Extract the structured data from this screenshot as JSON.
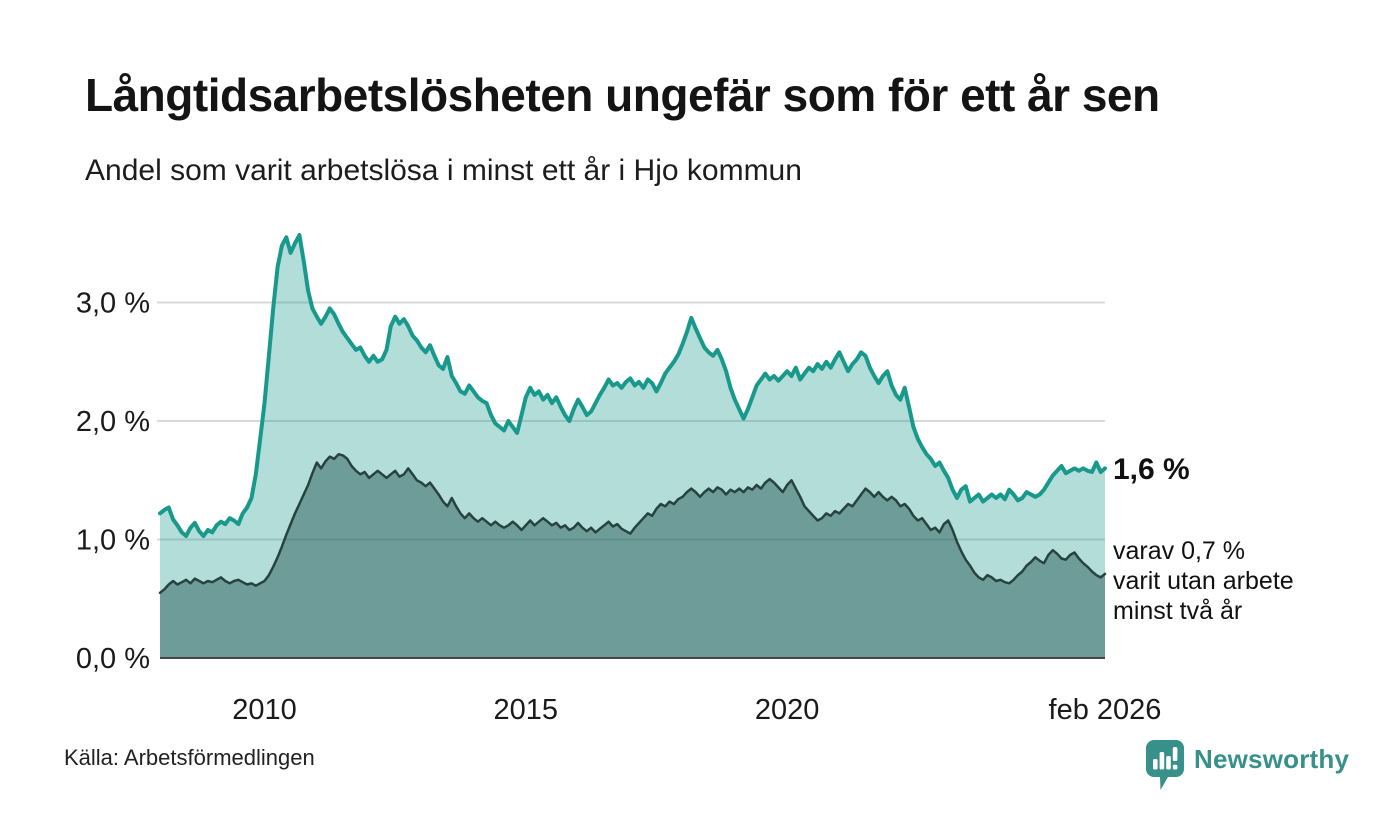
{
  "header": {
    "title": "Långtidsarbetslösheten ungefär som för ett år sen",
    "subtitle": "Andel som varit arbetslösa i minst ett år i Hjo kommun"
  },
  "annotations": {
    "latest_value": "1,6 %",
    "secondary_line1": "varav 0,7 %",
    "secondary_line2": "varit utan arbete",
    "secondary_line3": "minst två år"
  },
  "footer": {
    "source": "Källa: Arbetsförmedlingen",
    "brand": "Newsworthy"
  },
  "colors": {
    "accent_teal": "#18998b",
    "light_fill": "rgba(24,153,139,0.33)",
    "dark_line": "#27433f",
    "dark_fill": "rgba(31,82,78,0.47)",
    "gridline": "#d9d9d9",
    "baseline": "#454545",
    "text": "#1a1a1a",
    "brand_teal": "#38908a"
  },
  "chart_data": {
    "type": "area",
    "title": "Långtidsarbetslösheten ungefär som för ett år sen",
    "subtitle": "Andel som varit arbetslösa i minst ett år i Hjo kommun",
    "unit": "%",
    "grid": "horizontal",
    "legend_position": "none",
    "xlim": [
      2008,
      2026.083
    ],
    "ylim": [
      0,
      3.65
    ],
    "x_ticks": [
      {
        "value": 2010,
        "label": "2010"
      },
      {
        "value": 2015,
        "label": "2015"
      },
      {
        "value": 2020,
        "label": "2020"
      },
      {
        "value": 2026.083,
        "label": "feb 2026"
      }
    ],
    "y_ticks": [
      {
        "value": 0,
        "label": "0,0 %"
      },
      {
        "value": 1,
        "label": "1,0 %"
      },
      {
        "value": 2,
        "label": "2,0 %"
      },
      {
        "value": 3,
        "label": "3,0 %"
      }
    ],
    "series": [
      {
        "id": "minst-ett-ar",
        "name": "Andel arbetslösa minst ett år",
        "end_label": "1,6 %",
        "color": "#18998b",
        "fill": "rgba(24,153,139,0.33)",
        "stroke_width": 4,
        "start_year": 2008,
        "interval_months": 1,
        "values": [
          1.22,
          1.25,
          1.27,
          1.17,
          1.12,
          1.06,
          1.03,
          1.1,
          1.14,
          1.07,
          1.03,
          1.08,
          1.06,
          1.12,
          1.15,
          1.13,
          1.18,
          1.16,
          1.13,
          1.22,
          1.27,
          1.35,
          1.55,
          1.85,
          2.15,
          2.55,
          2.95,
          3.3,
          3.48,
          3.55,
          3.42,
          3.5,
          3.57,
          3.35,
          3.1,
          2.95,
          2.88,
          2.82,
          2.88,
          2.95,
          2.9,
          2.82,
          2.75,
          2.7,
          2.65,
          2.6,
          2.62,
          2.55,
          2.5,
          2.55,
          2.5,
          2.52,
          2.6,
          2.8,
          2.88,
          2.82,
          2.86,
          2.8,
          2.72,
          2.68,
          2.62,
          2.58,
          2.64,
          2.55,
          2.47,
          2.44,
          2.54,
          2.38,
          2.32,
          2.25,
          2.23,
          2.3,
          2.25,
          2.2,
          2.17,
          2.15,
          2.05,
          1.98,
          1.95,
          1.92,
          2.0,
          1.95,
          1.9,
          2.05,
          2.2,
          2.28,
          2.22,
          2.25,
          2.18,
          2.22,
          2.15,
          2.2,
          2.12,
          2.05,
          2.0,
          2.1,
          2.18,
          2.12,
          2.05,
          2.08,
          2.15,
          2.22,
          2.28,
          2.35,
          2.3,
          2.32,
          2.28,
          2.33,
          2.36,
          2.3,
          2.33,
          2.28,
          2.35,
          2.32,
          2.25,
          2.32,
          2.4,
          2.45,
          2.5,
          2.56,
          2.65,
          2.75,
          2.87,
          2.78,
          2.7,
          2.62,
          2.58,
          2.55,
          2.6,
          2.52,
          2.42,
          2.28,
          2.18,
          2.1,
          2.02,
          2.1,
          2.2,
          2.3,
          2.35,
          2.4,
          2.35,
          2.38,
          2.34,
          2.38,
          2.42,
          2.38,
          2.45,
          2.35,
          2.4,
          2.45,
          2.42,
          2.48,
          2.44,
          2.5,
          2.45,
          2.52,
          2.58,
          2.5,
          2.42,
          2.48,
          2.52,
          2.58,
          2.55,
          2.45,
          2.38,
          2.32,
          2.38,
          2.42,
          2.3,
          2.22,
          2.18,
          2.28,
          2.12,
          1.95,
          1.85,
          1.78,
          1.72,
          1.68,
          1.62,
          1.65,
          1.58,
          1.52,
          1.42,
          1.35,
          1.42,
          1.45,
          1.32,
          1.35,
          1.38,
          1.32,
          1.35,
          1.38,
          1.35,
          1.38,
          1.34,
          1.42,
          1.38,
          1.33,
          1.35,
          1.4,
          1.38,
          1.36,
          1.38,
          1.42,
          1.48,
          1.54,
          1.58,
          1.62,
          1.56,
          1.58,
          1.6,
          1.58,
          1.6,
          1.58,
          1.57,
          1.65,
          1.57,
          1.6
        ]
      },
      {
        "id": "minst-tva-ar",
        "name": "Andel arbetslösa minst två år",
        "end_label": "0,7 %",
        "color": "#27433f",
        "fill": "rgba(31,82,78,0.47)",
        "stroke_width": 2.5,
        "start_year": 2008,
        "interval_months": 1,
        "values": [
          0.55,
          0.58,
          0.62,
          0.65,
          0.62,
          0.64,
          0.66,
          0.63,
          0.67,
          0.65,
          0.63,
          0.65,
          0.64,
          0.66,
          0.68,
          0.65,
          0.63,
          0.65,
          0.66,
          0.64,
          0.62,
          0.63,
          0.61,
          0.63,
          0.65,
          0.7,
          0.77,
          0.85,
          0.94,
          1.04,
          1.13,
          1.22,
          1.3,
          1.38,
          1.46,
          1.56,
          1.65,
          1.6,
          1.66,
          1.7,
          1.68,
          1.72,
          1.71,
          1.68,
          1.62,
          1.58,
          1.55,
          1.57,
          1.52,
          1.55,
          1.58,
          1.55,
          1.52,
          1.55,
          1.58,
          1.53,
          1.55,
          1.6,
          1.55,
          1.5,
          1.48,
          1.45,
          1.48,
          1.43,
          1.38,
          1.32,
          1.28,
          1.35,
          1.28,
          1.22,
          1.18,
          1.22,
          1.18,
          1.15,
          1.18,
          1.15,
          1.12,
          1.15,
          1.12,
          1.1,
          1.12,
          1.15,
          1.12,
          1.08,
          1.12,
          1.16,
          1.12,
          1.15,
          1.18,
          1.15,
          1.12,
          1.14,
          1.1,
          1.12,
          1.08,
          1.1,
          1.14,
          1.1,
          1.07,
          1.1,
          1.06,
          1.09,
          1.12,
          1.15,
          1.11,
          1.13,
          1.09,
          1.07,
          1.05,
          1.1,
          1.14,
          1.18,
          1.22,
          1.2,
          1.26,
          1.3,
          1.28,
          1.32,
          1.3,
          1.34,
          1.36,
          1.4,
          1.43,
          1.4,
          1.36,
          1.4,
          1.43,
          1.4,
          1.44,
          1.42,
          1.38,
          1.42,
          1.4,
          1.43,
          1.4,
          1.44,
          1.42,
          1.46,
          1.43,
          1.48,
          1.51,
          1.48,
          1.44,
          1.4,
          1.46,
          1.5,
          1.43,
          1.36,
          1.28,
          1.24,
          1.2,
          1.16,
          1.18,
          1.22,
          1.2,
          1.24,
          1.22,
          1.26,
          1.3,
          1.28,
          1.33,
          1.38,
          1.43,
          1.4,
          1.36,
          1.4,
          1.36,
          1.33,
          1.36,
          1.33,
          1.28,
          1.3,
          1.26,
          1.2,
          1.16,
          1.18,
          1.13,
          1.08,
          1.1,
          1.06,
          1.13,
          1.16,
          1.08,
          0.98,
          0.9,
          0.83,
          0.78,
          0.72,
          0.68,
          0.66,
          0.7,
          0.68,
          0.65,
          0.66,
          0.64,
          0.63,
          0.66,
          0.7,
          0.73,
          0.78,
          0.81,
          0.85,
          0.82,
          0.8,
          0.87,
          0.91,
          0.88,
          0.84,
          0.83,
          0.87,
          0.89,
          0.84,
          0.8,
          0.77,
          0.73,
          0.7,
          0.68,
          0.71
        ]
      }
    ]
  }
}
